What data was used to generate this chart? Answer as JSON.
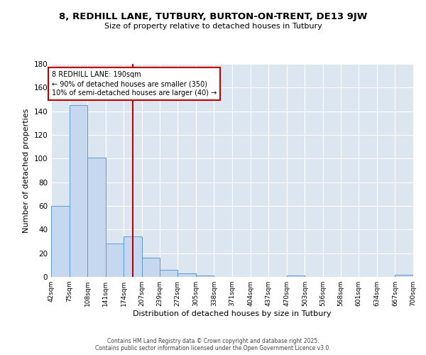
{
  "title": "8, REDHILL LANE, TUTBURY, BURTON-ON-TRENT, DE13 9JW",
  "subtitle": "Size of property relative to detached houses in Tutbury",
  "xlabel": "Distribution of detached houses by size in Tutbury",
  "ylabel": "Number of detached properties",
  "bar_edges": [
    42,
    75,
    108,
    141,
    174,
    207,
    239,
    272,
    305,
    338,
    371,
    404,
    437,
    470,
    503,
    536,
    568,
    601,
    634,
    667,
    700
  ],
  "bar_heights": [
    60,
    145,
    101,
    28,
    34,
    16,
    6,
    3,
    1,
    0,
    0,
    0,
    0,
    1,
    0,
    0,
    0,
    0,
    0,
    2
  ],
  "bar_color": "#c5d8f0",
  "bar_edge_color": "#5b9bd5",
  "vline_x": 190,
  "vline_color": "#c00000",
  "annotation_line1": "8 REDHILL LANE: 190sqm",
  "annotation_line2": "← 90% of detached houses are smaller (350)",
  "annotation_line3": "10% of semi-detached houses are larger (40) →",
  "annotation_box_color": "#c00000",
  "annotation_text_color": "#000000",
  "ylim": [
    0,
    180
  ],
  "yticks": [
    0,
    20,
    40,
    60,
    80,
    100,
    120,
    140,
    160,
    180
  ],
  "tick_labels": [
    "42sqm",
    "75sqm",
    "108sqm",
    "141sqm",
    "174sqm",
    "207sqm",
    "239sqm",
    "272sqm",
    "305sqm",
    "338sqm",
    "371sqm",
    "404sqm",
    "437sqm",
    "470sqm",
    "503sqm",
    "536sqm",
    "568sqm",
    "601sqm",
    "634sqm",
    "667sqm",
    "700sqm"
  ],
  "bg_color": "#dce6f1",
  "footer1": "Contains HM Land Registry data © Crown copyright and database right 2025.",
  "footer2": "Contains public sector information licensed under the Open Government Licence v3.0."
}
